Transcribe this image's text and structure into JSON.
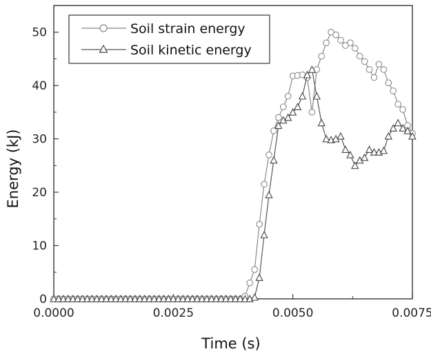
{
  "chart_data": {
    "type": "line",
    "xlabel": "Time (s)",
    "ylabel": "Energy (kJ)",
    "xlim": [
      0,
      0.0075
    ],
    "ylim": [
      0,
      55
    ],
    "x_ticks": [
      "0.0000",
      "0.0025",
      "0.0050",
      "0.0075"
    ],
    "y_ticks": [
      "0",
      "10",
      "20",
      "30",
      "40",
      "50"
    ],
    "legend_position": "top-left",
    "series": [
      {
        "name": "Soil strain energy",
        "marker": "circle",
        "color": "#888888",
        "x": [
          0.0,
          0.0001,
          0.0002,
          0.0003,
          0.0004,
          0.0005,
          0.0006,
          0.0007,
          0.0008,
          0.0009,
          0.001,
          0.0011,
          0.0012,
          0.0013,
          0.0014,
          0.0015,
          0.0016,
          0.0017,
          0.0018,
          0.0019,
          0.002,
          0.0021,
          0.0022,
          0.0023,
          0.0024,
          0.0025,
          0.0026,
          0.0027,
          0.0028,
          0.0029,
          0.003,
          0.0031,
          0.0032,
          0.0033,
          0.0034,
          0.0035,
          0.0036,
          0.0037,
          0.0038,
          0.0039,
          0.004,
          0.0041,
          0.0042,
          0.0043,
          0.0044,
          0.0045,
          0.0046,
          0.0047,
          0.0048,
          0.0049,
          0.005,
          0.0051,
          0.0052,
          0.0053,
          0.0054,
          0.0055,
          0.0056,
          0.0057,
          0.0058,
          0.0059,
          0.006,
          0.0061,
          0.0062,
          0.0063,
          0.0064,
          0.0065,
          0.0066,
          0.0067,
          0.0068,
          0.0069,
          0.007,
          0.0071,
          0.0072,
          0.0073,
          0.0074,
          0.0075
        ],
        "y": [
          0,
          0,
          0,
          0,
          0,
          0,
          0,
          0,
          0,
          0,
          0,
          0,
          0,
          0,
          0,
          0,
          0,
          0,
          0,
          0,
          0,
          0,
          0,
          0,
          0,
          0,
          0,
          0,
          0,
          0,
          0,
          0,
          0,
          0,
          0,
          0,
          0,
          0,
          0,
          0,
          0.5,
          3,
          5.5,
          14,
          21.5,
          27,
          31.5,
          34,
          36,
          38,
          41.8,
          41.9,
          42,
          41.5,
          35,
          43,
          45.5,
          48,
          50,
          49.5,
          48.5,
          47.5,
          48,
          47,
          45.5,
          44.5,
          43,
          41.5,
          44,
          43,
          40.5,
          39,
          36.5,
          35.5,
          32.5,
          31
        ]
      },
      {
        "name": "Soil kinetic energy",
        "marker": "triangle",
        "color": "#555555",
        "x": [
          0.0,
          0.0001,
          0.0002,
          0.0003,
          0.0004,
          0.0005,
          0.0006,
          0.0007,
          0.0008,
          0.0009,
          0.001,
          0.0011,
          0.0012,
          0.0013,
          0.0014,
          0.0015,
          0.0016,
          0.0017,
          0.0018,
          0.0019,
          0.002,
          0.0021,
          0.0022,
          0.0023,
          0.0024,
          0.0025,
          0.0026,
          0.0027,
          0.0028,
          0.0029,
          0.003,
          0.0031,
          0.0032,
          0.0033,
          0.0034,
          0.0035,
          0.0036,
          0.0037,
          0.0038,
          0.0039,
          0.004,
          0.0041,
          0.0042,
          0.0043,
          0.0044,
          0.0045,
          0.0046,
          0.0047,
          0.0048,
          0.0049,
          0.005,
          0.0051,
          0.0052,
          0.0053,
          0.0054,
          0.0055,
          0.0056,
          0.0057,
          0.0058,
          0.0059,
          0.006,
          0.0061,
          0.0062,
          0.0063,
          0.0064,
          0.0065,
          0.0066,
          0.0067,
          0.0068,
          0.0069,
          0.007,
          0.0071,
          0.0072,
          0.0073,
          0.0074,
          0.0075
        ],
        "y": [
          0,
          0,
          0,
          0,
          0,
          0,
          0,
          0,
          0,
          0,
          0,
          0,
          0,
          0,
          0,
          0,
          0,
          0,
          0,
          0,
          0,
          0,
          0,
          0,
          0,
          0,
          0,
          0,
          0,
          0,
          0,
          0,
          0,
          0,
          0,
          0,
          0,
          0,
          0,
          0,
          0,
          0,
          0.3,
          4,
          12,
          19.5,
          26,
          32.5,
          33.5,
          34,
          35,
          36,
          38,
          42,
          43,
          38,
          33,
          30,
          29.8,
          30,
          30.5,
          28,
          27,
          25,
          26,
          26.5,
          28,
          27.5,
          27.5,
          27.8,
          30.5,
          32,
          33,
          32,
          31.5,
          30.5
        ]
      }
    ]
  }
}
